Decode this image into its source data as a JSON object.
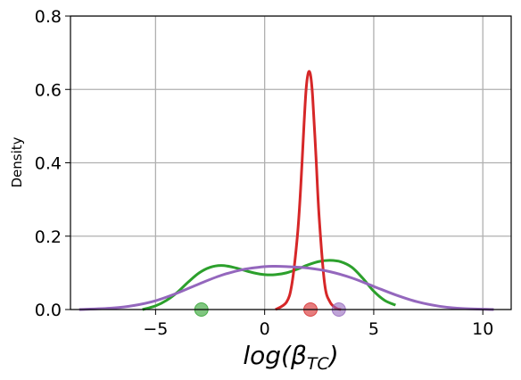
{
  "chart_data": {
    "type": "line",
    "xlabel": "log(β",
    "xlabel_subscript": "TC",
    "xlabel_close": ")",
    "ylabel": "Density",
    "xlim": [
      -8.9,
      11.3
    ],
    "ylim": [
      0.0,
      0.8
    ],
    "xticks": [
      -5,
      0,
      5,
      10
    ],
    "xtick_labels": [
      "−5",
      "0",
      "5",
      "10"
    ],
    "yticks": [
      0.0,
      0.2,
      0.4,
      0.6,
      0.8
    ],
    "ytick_labels": [
      "0.0",
      "0.2",
      "0.4",
      "0.6",
      "0.8"
    ],
    "grid": true,
    "legend": "none",
    "series": [
      {
        "color": "#2ca02c",
        "x": [
          -5.6,
          -5.0,
          -4.5,
          -4.0,
          -3.5,
          -3.0,
          -2.5,
          -2.0,
          -1.5,
          -1.0,
          -0.5,
          0.0,
          0.5,
          1.0,
          1.5,
          2.0,
          2.5,
          3.0,
          3.5,
          4.0,
          4.5,
          5.0,
          5.5,
          6.0
        ],
        "y": [
          0.0,
          0.01,
          0.025,
          0.047,
          0.075,
          0.1,
          0.115,
          0.12,
          0.116,
          0.108,
          0.1,
          0.095,
          0.095,
          0.1,
          0.11,
          0.122,
          0.131,
          0.134,
          0.13,
          0.115,
          0.085,
          0.05,
          0.025,
          0.012
        ]
      },
      {
        "color": "#d62728",
        "x": [
          0.5,
          1.0,
          1.25,
          1.5,
          1.65,
          1.8,
          1.9,
          2.0,
          2.1,
          2.2,
          2.35,
          2.5,
          2.75,
          3.0,
          3.3,
          3.5
        ],
        "y": [
          0.0,
          0.02,
          0.07,
          0.2,
          0.33,
          0.5,
          0.6,
          0.645,
          0.64,
          0.58,
          0.42,
          0.25,
          0.07,
          0.02,
          0.003,
          0.0
        ]
      },
      {
        "color": "#9467bd",
        "x": [
          -8.5,
          -7.0,
          -6.0,
          -5.0,
          -4.0,
          -3.0,
          -2.0,
          -1.0,
          0.0,
          0.5,
          1.0,
          2.0,
          3.0,
          4.0,
          5.0,
          6.0,
          7.0,
          8.0,
          9.0,
          10.5
        ],
        "y": [
          0.0,
          0.004,
          0.011,
          0.024,
          0.045,
          0.07,
          0.093,
          0.109,
          0.117,
          0.118,
          0.117,
          0.113,
          0.103,
          0.086,
          0.063,
          0.04,
          0.021,
          0.009,
          0.003,
          0.0
        ]
      }
    ],
    "markers": [
      {
        "color": "#2ca02c",
        "x": -2.9,
        "y": 0.0
      },
      {
        "color": "#d62728",
        "x": 2.1,
        "y": 0.0
      },
      {
        "color": "#9467bd",
        "x": 3.4,
        "y": 0.0
      }
    ]
  }
}
